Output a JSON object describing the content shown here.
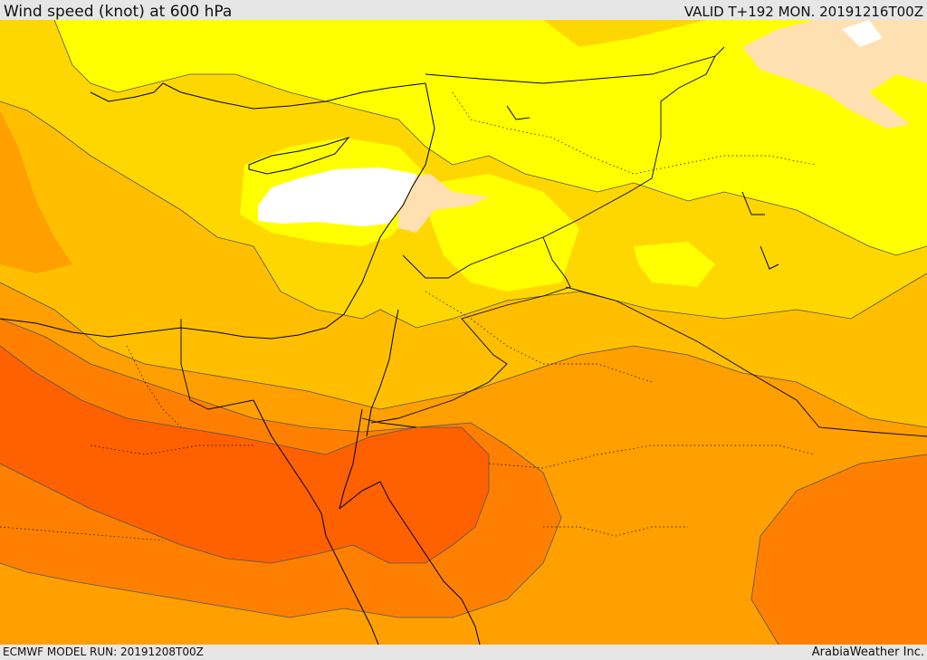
{
  "header": {
    "title": "Wind speed (knot) at 600 hPa",
    "valid": "VALID T+192 MON. 20191216T00Z"
  },
  "footer": {
    "model_run": "ECMWF MODEL RUN: 20191208T00Z",
    "credit": "ArabiaWeather Inc."
  },
  "map": {
    "variable": "wind speed",
    "unit": "knot",
    "level": "600 hPa",
    "fill_colors": {
      "lowest": "#ffffff",
      "low": "#ffe0b0",
      "light": "#ffff00",
      "yellow_orange": "#ffd700",
      "amber": "#ffbf00",
      "orange": "#ff9f00",
      "dark_orange": "#ff8000",
      "red_orange": "#ff6000"
    },
    "line_colors": {
      "coast_border": "#000000",
      "contour": "#555555"
    }
  }
}
